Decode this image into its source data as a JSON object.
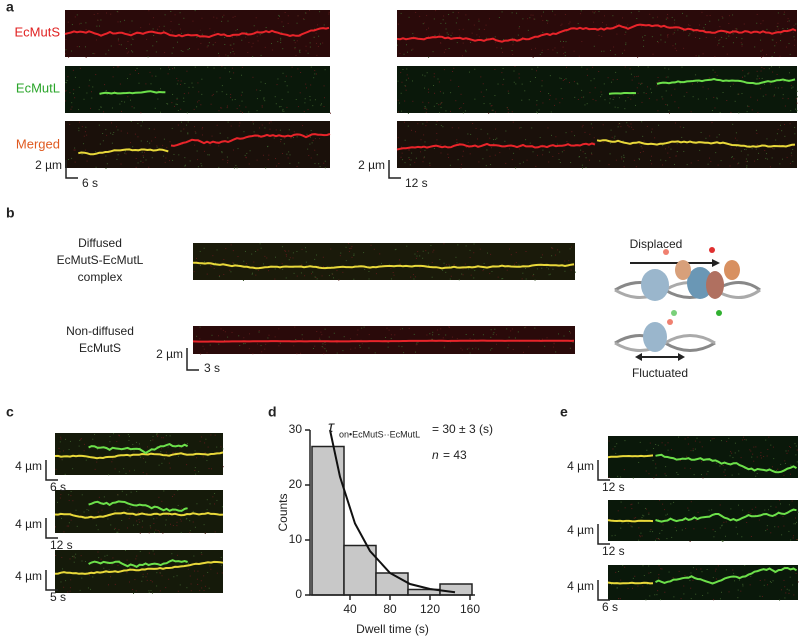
{
  "panel_a": {
    "letter": "a",
    "row_labels": [
      "EcMutS",
      "EcMutL",
      "Merged"
    ],
    "scale_left": [
      "2 µm",
      "6 s"
    ],
    "scale_right": [
      "2 µm",
      "12 s"
    ]
  },
  "panel_b": {
    "letter": "b",
    "label_1": [
      "Diffused",
      "EcMutS-EcMutL",
      "complex"
    ],
    "label_2": [
      "Non-diffused",
      "EcMutS"
    ],
    "scale": [
      "2 µm",
      "3 s"
    ],
    "displaced": "Displaced",
    "fluctuated": "Fluctuated"
  },
  "panel_c": {
    "letter": "c",
    "scales": [
      [
        "4 µm",
        "6 s"
      ],
      [
        "4 µm",
        "12 s"
      ],
      [
        "4 µm",
        "5 s"
      ]
    ]
  },
  "panel_e": {
    "letter": "e",
    "scales": [
      [
        "4 µm",
        "12 s"
      ],
      [
        "4 µm",
        "12 s"
      ],
      [
        "4 µm",
        "6 s"
      ]
    ]
  },
  "chart_data": {
    "type": "histogram",
    "letter": "d",
    "tau_symbol": "τ",
    "tau_subscript": "on•EcMutS··EcMutL",
    "tau_value": "= 30 ± 3 (s)",
    "n_symbol": "n",
    "n_value": "= 43",
    "x_label": "Dwell time (s)",
    "y_label": "Counts",
    "bins": [
      2,
      34,
      66,
      98,
      130,
      162
    ],
    "values": [
      27,
      9,
      4,
      1,
      2
    ],
    "color": "#c8c8c8",
    "fit": {
      "x": [
        20,
        30,
        45,
        60,
        80,
        100,
        120,
        145
      ],
      "y": [
        30,
        21.5,
        13,
        8,
        4,
        2,
        1.1,
        0.5
      ]
    },
    "xlim": [
      0,
      165
    ],
    "ylim": [
      0,
      30
    ],
    "xticks": [
      40,
      80,
      120,
      160
    ],
    "yticks": [
      0,
      10,
      20,
      30
    ]
  }
}
